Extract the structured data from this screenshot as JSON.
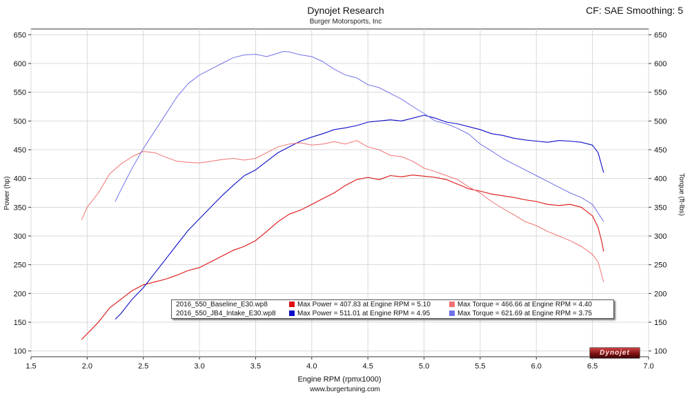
{
  "chart_data": {
    "type": "line",
    "title": "Dynojet Research",
    "subtitle": "Burger Motorsports, Inc",
    "header_right": "CF: SAE Smoothing: 5",
    "xlabel": "Engine RPM (rpmx1000)",
    "ylabel_left": "Power (hp)",
    "ylabel_right": "Torque (ft-lbs)",
    "footer": "www.burgertuning.com",
    "xlim": [
      1.5,
      7.0
    ],
    "ylim": [
      90,
      660
    ],
    "x_ticks": [
      "1.5",
      "2.0",
      "2.5",
      "3.0",
      "3.5",
      "4.0",
      "4.5",
      "5.0",
      "5.5",
      "6.0",
      "6.5",
      "7.0"
    ],
    "y_ticks": [
      "100",
      "150",
      "200",
      "250",
      "300",
      "350",
      "400",
      "450",
      "500",
      "550",
      "600",
      "650"
    ],
    "grid": true,
    "logo_text": "Dynojet",
    "series": [
      {
        "name": "2016_550_Baseline_E30.wp8 Power",
        "color": "#dd1111",
        "width": 1.1,
        "x": [
          1.95,
          2.0,
          2.1,
          2.2,
          2.3,
          2.4,
          2.5,
          2.6,
          2.7,
          2.8,
          2.9,
          3.0,
          3.1,
          3.2,
          3.3,
          3.4,
          3.5,
          3.6,
          3.7,
          3.8,
          3.9,
          4.0,
          4.1,
          4.2,
          4.3,
          4.4,
          4.5,
          4.6,
          4.7,
          4.8,
          4.9,
          5.0,
          5.1,
          5.2,
          5.3,
          5.4,
          5.5,
          5.6,
          5.7,
          5.8,
          5.9,
          6.0,
          6.1,
          6.2,
          6.3,
          6.4,
          6.5,
          6.55,
          6.58,
          6.6
        ],
        "y": [
          120,
          130,
          150,
          175,
          190,
          205,
          215,
          220,
          225,
          232,
          240,
          245,
          255,
          265,
          275,
          282,
          292,
          308,
          325,
          338,
          345,
          355,
          365,
          375,
          388,
          398,
          402,
          398,
          405,
          403,
          406,
          404,
          402,
          398,
          390,
          382,
          378,
          373,
          370,
          367,
          363,
          360,
          355,
          353,
          355,
          350,
          335,
          315,
          292,
          273
        ]
      },
      {
        "name": "2016_550_JB4_Intake_E30.wp8 Power",
        "color": "#0a0ac8",
        "width": 1.1,
        "x": [
          2.25,
          2.3,
          2.4,
          2.5,
          2.6,
          2.7,
          2.8,
          2.9,
          3.0,
          3.1,
          3.2,
          3.3,
          3.4,
          3.5,
          3.6,
          3.7,
          3.8,
          3.9,
          4.0,
          4.1,
          4.2,
          4.3,
          4.4,
          4.5,
          4.6,
          4.7,
          4.8,
          4.9,
          5.0,
          5.1,
          5.2,
          5.3,
          5.4,
          5.5,
          5.6,
          5.7,
          5.8,
          5.9,
          6.0,
          6.1,
          6.2,
          6.3,
          6.4,
          6.5,
          6.55,
          6.6
        ],
        "y": [
          155,
          165,
          190,
          210,
          235,
          260,
          285,
          310,
          330,
          350,
          370,
          388,
          405,
          415,
          430,
          445,
          455,
          465,
          472,
          478,
          485,
          488,
          492,
          498,
          500,
          502,
          500,
          505,
          510,
          505,
          498,
          495,
          490,
          485,
          478,
          475,
          470,
          467,
          465,
          463,
          466,
          465,
          463,
          458,
          445,
          410
        ]
      },
      {
        "name": "2016_550_Baseline_E30.wp8 Torque",
        "color": "#f07070",
        "width": 1.0,
        "x": [
          1.95,
          2.0,
          2.1,
          2.2,
          2.3,
          2.4,
          2.5,
          2.6,
          2.7,
          2.8,
          2.9,
          3.0,
          3.1,
          3.2,
          3.3,
          3.4,
          3.5,
          3.6,
          3.7,
          3.8,
          3.9,
          4.0,
          4.1,
          4.2,
          4.3,
          4.4,
          4.5,
          4.6,
          4.7,
          4.8,
          4.9,
          5.0,
          5.1,
          5.2,
          5.3,
          5.4,
          5.5,
          5.6,
          5.7,
          5.8,
          5.9,
          6.0,
          6.1,
          6.2,
          6.3,
          6.4,
          6.5,
          6.55,
          6.6
        ],
        "y": [
          328,
          350,
          375,
          408,
          425,
          438,
          447,
          445,
          437,
          430,
          428,
          427,
          430,
          433,
          435,
          432,
          435,
          445,
          455,
          460,
          462,
          458,
          460,
          464,
          460,
          466,
          455,
          450,
          440,
          438,
          430,
          418,
          412,
          405,
          398,
          385,
          375,
          360,
          348,
          337,
          325,
          318,
          308,
          300,
          292,
          282,
          268,
          255,
          220
        ]
      },
      {
        "name": "2016_550_JB4_Intake_E30.wp8 Torque",
        "color": "#7070e8",
        "width": 1.0,
        "x": [
          2.25,
          2.3,
          2.4,
          2.5,
          2.6,
          2.7,
          2.8,
          2.9,
          3.0,
          3.1,
          3.2,
          3.3,
          3.4,
          3.5,
          3.6,
          3.7,
          3.75,
          3.8,
          3.9,
          4.0,
          4.1,
          4.2,
          4.3,
          4.4,
          4.5,
          4.6,
          4.7,
          4.8,
          4.9,
          5.0,
          5.1,
          5.2,
          5.3,
          5.4,
          5.5,
          5.6,
          5.7,
          5.8,
          5.9,
          6.0,
          6.1,
          6.2,
          6.3,
          6.4,
          6.5,
          6.55,
          6.6
        ],
        "y": [
          360,
          380,
          418,
          452,
          482,
          512,
          542,
          565,
          580,
          590,
          600,
          610,
          615,
          616,
          612,
          618,
          621,
          620,
          615,
          612,
          603,
          590,
          580,
          575,
          563,
          558,
          548,
          538,
          525,
          513,
          500,
          495,
          487,
          477,
          460,
          448,
          435,
          425,
          415,
          405,
          395,
          385,
          375,
          367,
          355,
          340,
          325
        ]
      }
    ],
    "legend": {
      "rows": [
        {
          "file": "2016_550_Baseline_E30.wp8",
          "power_color": "#dd1111",
          "power_text": "Max Power = 407.83 at Engine RPM = 5.10",
          "torque_color": "#f07070",
          "torque_text": "Max Torque = 466.66 at Engine RPM = 4.40"
        },
        {
          "file": "2016_550_JB4_Intake_E30.wp8",
          "power_color": "#0a0ac8",
          "power_text": "Max Power = 511.01 at Engine RPM = 4.95",
          "torque_color": "#7070e8",
          "torque_text": "Max Torque = 621.69 at Engine RPM = 3.75"
        }
      ]
    }
  }
}
